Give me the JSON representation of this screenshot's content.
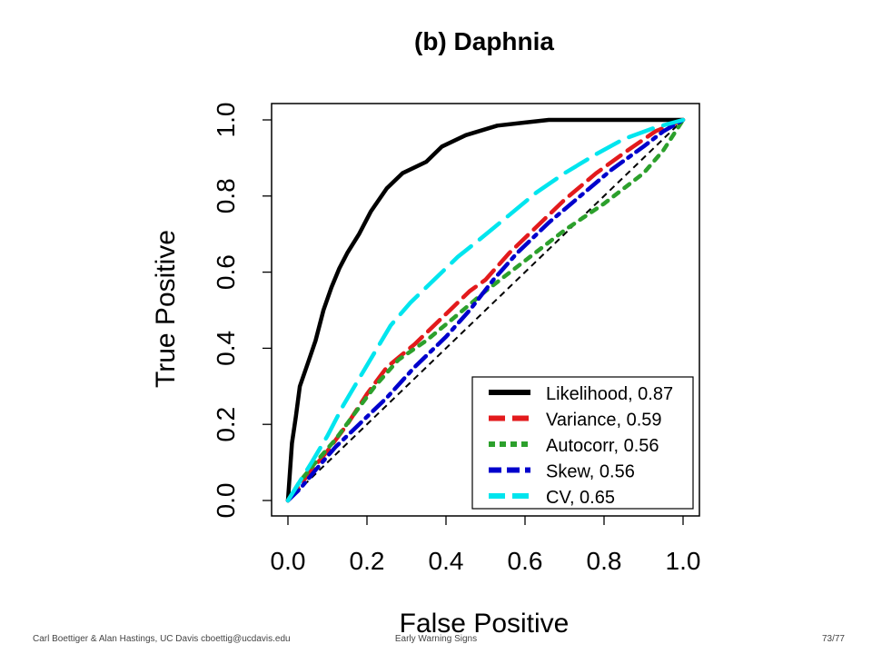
{
  "chart_data": {
    "type": "line",
    "title": "(b) Daphnia",
    "xlabel": "False Positive",
    "ylabel": "True Positive",
    "xlim": [
      0,
      1
    ],
    "ylim": [
      0,
      1
    ],
    "xticks": [
      "0.0",
      "0.2",
      "0.4",
      "0.6",
      "0.8",
      "1.0"
    ],
    "yticks": [
      "0.0",
      "0.2",
      "0.4",
      "0.6",
      "0.8",
      "1.0"
    ],
    "grid": false,
    "legend_position": "bottom-right",
    "reference_line": {
      "x": [
        0,
        1
      ],
      "y": [
        0,
        1
      ],
      "color": "#000000",
      "style": "dashed"
    },
    "series": [
      {
        "name": "Likelihood, 0.87",
        "color": "#000000",
        "style": "solid",
        "x": [
          0,
          0.01,
          0.02,
          0.03,
          0.05,
          0.07,
          0.09,
          0.11,
          0.13,
          0.15,
          0.18,
          0.21,
          0.25,
          0.29,
          0.35,
          0.39,
          0.45,
          0.53,
          0.6,
          0.66,
          0.7,
          0.8,
          0.9,
          1.0
        ],
        "y": [
          0,
          0.15,
          0.22,
          0.3,
          0.36,
          0.42,
          0.5,
          0.56,
          0.61,
          0.65,
          0.7,
          0.76,
          0.82,
          0.86,
          0.89,
          0.93,
          0.96,
          0.985,
          0.993,
          1.0,
          1.0,
          1.0,
          1.0,
          1.0
        ]
      },
      {
        "name": "Variance, 0.59",
        "color": "#e31a1c",
        "style": "dashed",
        "x": [
          0,
          0.03,
          0.06,
          0.1,
          0.15,
          0.2,
          0.25,
          0.32,
          0.4,
          0.46,
          0.5,
          0.56,
          0.62,
          0.7,
          0.78,
          0.86,
          0.93,
          1.0
        ],
        "y": [
          0,
          0.04,
          0.08,
          0.13,
          0.2,
          0.28,
          0.35,
          0.41,
          0.49,
          0.55,
          0.58,
          0.65,
          0.71,
          0.79,
          0.86,
          0.92,
          0.97,
          1.0
        ]
      },
      {
        "name": "Autocorr, 0.56",
        "color": "#2ca02c",
        "style": "dotted",
        "x": [
          0,
          0.03,
          0.07,
          0.12,
          0.17,
          0.22,
          0.28,
          0.35,
          0.42,
          0.5,
          0.6,
          0.7,
          0.8,
          0.9,
          0.95,
          1.0
        ],
        "y": [
          0,
          0.05,
          0.1,
          0.16,
          0.23,
          0.3,
          0.37,
          0.42,
          0.48,
          0.55,
          0.63,
          0.71,
          0.78,
          0.86,
          0.92,
          1.0
        ]
      },
      {
        "name": "Skew, 0.56",
        "color": "#0000cc",
        "style": "dashdot",
        "x": [
          0,
          0.03,
          0.07,
          0.12,
          0.18,
          0.25,
          0.32,
          0.4,
          0.46,
          0.52,
          0.58,
          0.66,
          0.74,
          0.82,
          0.9,
          0.95,
          1.0
        ],
        "y": [
          0,
          0.03,
          0.08,
          0.14,
          0.2,
          0.27,
          0.35,
          0.43,
          0.5,
          0.58,
          0.65,
          0.73,
          0.8,
          0.87,
          0.93,
          0.97,
          1.0
        ]
      },
      {
        "name": "CV, 0.65",
        "color": "#00e5ee",
        "style": "longdash",
        "x": [
          0,
          0.03,
          0.06,
          0.1,
          0.14,
          0.18,
          0.22,
          0.26,
          0.31,
          0.37,
          0.43,
          0.49,
          0.56,
          0.63,
          0.7,
          0.78,
          0.85,
          0.93,
          1.0
        ],
        "y": [
          0,
          0.05,
          0.1,
          0.17,
          0.25,
          0.32,
          0.39,
          0.46,
          0.52,
          0.58,
          0.64,
          0.69,
          0.75,
          0.81,
          0.86,
          0.91,
          0.95,
          0.98,
          1.0
        ]
      }
    ]
  },
  "footer": {
    "left": "Carl Boettiger & Alan Hastings, UC Davis cboettig@ucdavis.edu",
    "center": "Early Warning Signs",
    "right": "73/77"
  }
}
